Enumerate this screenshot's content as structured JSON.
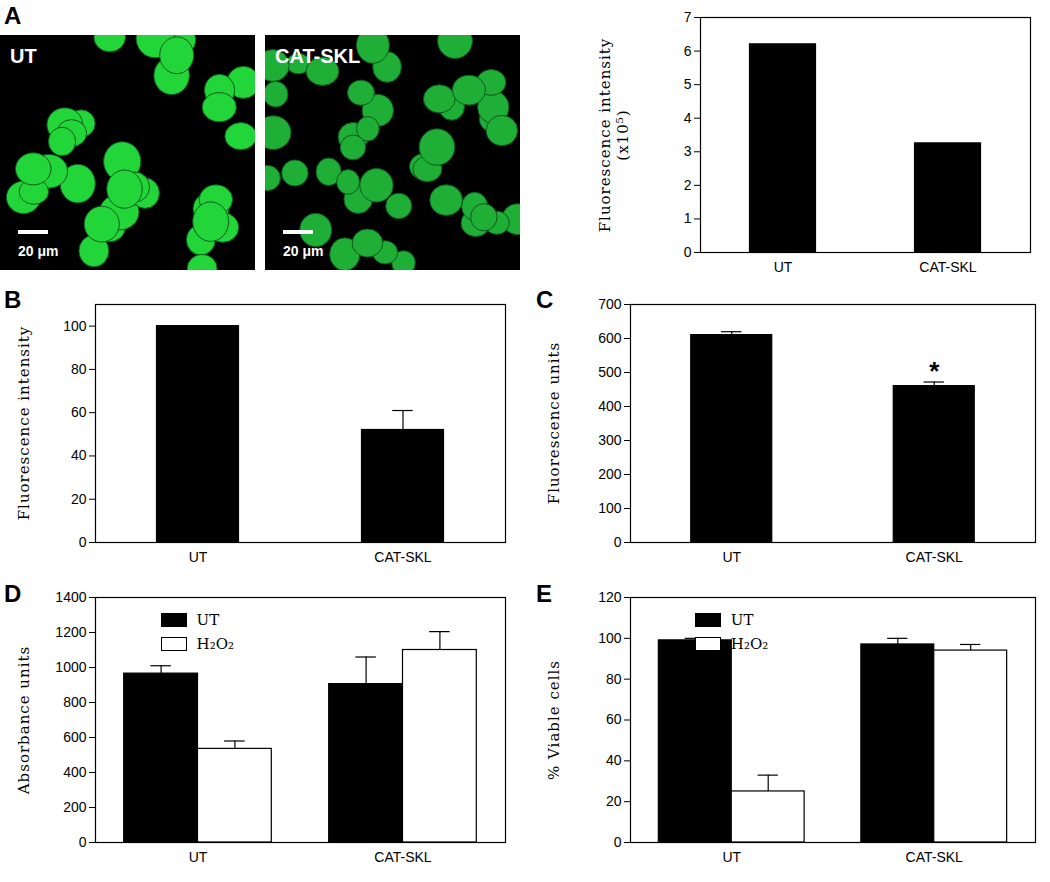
{
  "micrographs": [
    {
      "panel": "A",
      "label": "UT",
      "scale_bar": "20 μm"
    },
    {
      "label": "CAT-SKL",
      "scale_bar": "20 μm"
    }
  ],
  "chart_data": [
    {
      "panel": "A",
      "type": "bar",
      "categories": [
        "UT",
        "CAT-SKL"
      ],
      "values": [
        6.2,
        3.25
      ],
      "color": "#000000",
      "y_label": "Fluorescence intensity\n(x10⁵)",
      "ylim": [
        0,
        7
      ],
      "yticks": [
        0,
        1,
        2,
        3,
        4,
        5,
        6,
        7
      ],
      "grid": false
    },
    {
      "panel": "B",
      "type": "bar",
      "categories": [
        "UT",
        "CAT-SKL"
      ],
      "values": [
        100,
        52
      ],
      "errors": [
        0,
        9
      ],
      "color": "#000000",
      "y_label": "Fluorescence intensity",
      "ylim": [
        0,
        110
      ],
      "yticks": [
        0,
        20,
        40,
        60,
        80,
        100
      ],
      "grid": false
    },
    {
      "panel": "C",
      "type": "bar",
      "categories": [
        "UT",
        "CAT-SKL"
      ],
      "values": [
        610,
        460
      ],
      "errors": [
        10,
        12
      ],
      "color": "#000000",
      "y_label": "Fluorescence units",
      "ylim": [
        0,
        700
      ],
      "yticks": [
        0,
        100,
        200,
        300,
        400,
        500,
        600,
        700
      ],
      "grid": false,
      "annotations": [
        {
          "text": "*",
          "category": "CAT-SKL"
        }
      ]
    },
    {
      "panel": "D",
      "type": "bar",
      "categories": [
        "UT",
        "CAT-SKL"
      ],
      "series": [
        {
          "name": "UT",
          "color": "#000000",
          "values": [
            965,
            905
          ],
          "errors": [
            45,
            155
          ]
        },
        {
          "name": "H₂O₂",
          "color": "#ffffff",
          "values": [
            535,
            1100
          ],
          "errors": [
            45,
            105
          ]
        }
      ],
      "y_label": "Absorbance units",
      "ylim": [
        0,
        1400
      ],
      "yticks": [
        0,
        200,
        400,
        600,
        800,
        1000,
        1200,
        1400
      ],
      "grid": false,
      "legend": "top-left"
    },
    {
      "panel": "E",
      "type": "bar",
      "categories": [
        "UT",
        "CAT-SKL"
      ],
      "series": [
        {
          "name": "UT",
          "color": "#000000",
          "values": [
            99,
            97
          ],
          "errors": [
            1,
            3
          ]
        },
        {
          "name": "H₂O₂",
          "color": "#ffffff",
          "values": [
            25,
            94
          ],
          "errors": [
            8,
            3
          ]
        }
      ],
      "y_label": "% Viable cells",
      "ylim": [
        0,
        120
      ],
      "yticks": [
        0,
        20,
        40,
        60,
        80,
        100,
        120
      ],
      "grid": false,
      "legend": "top-left"
    }
  ]
}
